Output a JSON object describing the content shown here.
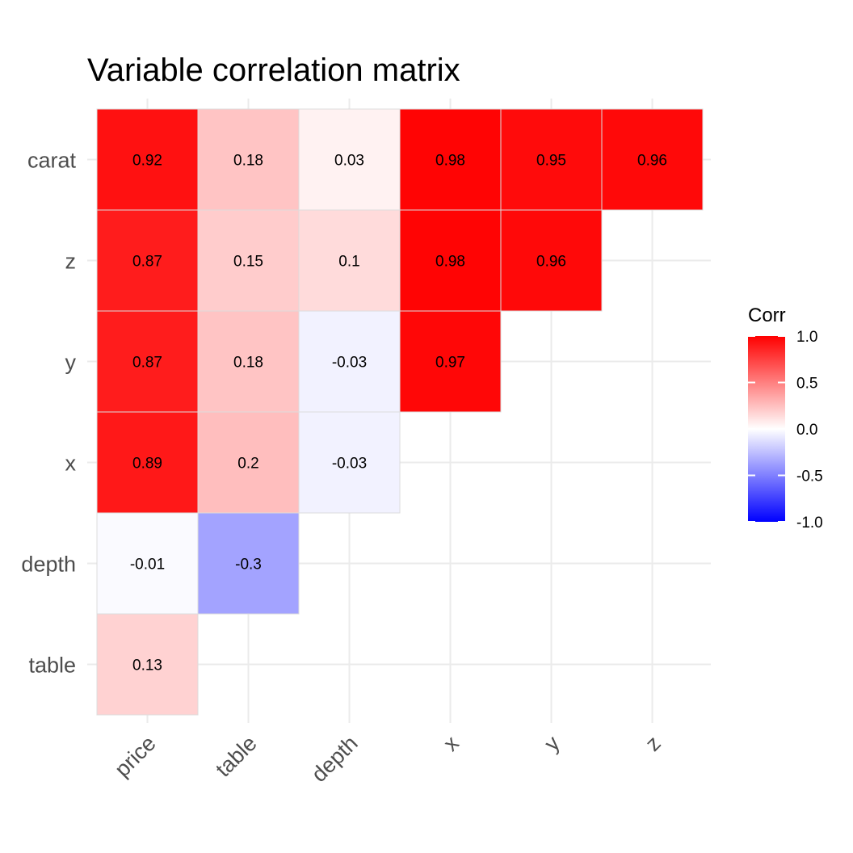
{
  "chart_data": {
    "type": "heatmap",
    "title": "Variable correlation matrix",
    "x_categories": [
      "price",
      "table",
      "depth",
      "x",
      "y",
      "z"
    ],
    "y_categories": [
      "carat",
      "z",
      "y",
      "x",
      "depth",
      "table"
    ],
    "cells": [
      {
        "x": "price",
        "y": "carat",
        "value": 0.92,
        "label": "0.92"
      },
      {
        "x": "table",
        "y": "carat",
        "value": 0.18,
        "label": "0.18"
      },
      {
        "x": "depth",
        "y": "carat",
        "value": 0.03,
        "label": "0.03"
      },
      {
        "x": "x",
        "y": "carat",
        "value": 0.98,
        "label": "0.98"
      },
      {
        "x": "y",
        "y": "carat",
        "value": 0.95,
        "label": "0.95"
      },
      {
        "x": "z",
        "y": "carat",
        "value": 0.96,
        "label": "0.96"
      },
      {
        "x": "price",
        "y": "z",
        "value": 0.87,
        "label": "0.87"
      },
      {
        "x": "table",
        "y": "z",
        "value": 0.15,
        "label": "0.15"
      },
      {
        "x": "depth",
        "y": "z",
        "value": 0.1,
        "label": "0.1"
      },
      {
        "x": "x",
        "y": "z",
        "value": 0.98,
        "label": "0.98"
      },
      {
        "x": "y",
        "y": "z",
        "value": 0.96,
        "label": "0.96"
      },
      {
        "x": "price",
        "y": "y",
        "value": 0.87,
        "label": "0.87"
      },
      {
        "x": "table",
        "y": "y",
        "value": 0.18,
        "label": "0.18"
      },
      {
        "x": "depth",
        "y": "y",
        "value": -0.03,
        "label": "-0.03"
      },
      {
        "x": "x",
        "y": "y",
        "value": 0.97,
        "label": "0.97"
      },
      {
        "x": "price",
        "y": "x",
        "value": 0.89,
        "label": "0.89"
      },
      {
        "x": "table",
        "y": "x",
        "value": 0.2,
        "label": "0.2"
      },
      {
        "x": "depth",
        "y": "x",
        "value": -0.03,
        "label": "-0.03"
      },
      {
        "x": "price",
        "y": "depth",
        "value": -0.01,
        "label": "-0.01"
      },
      {
        "x": "table",
        "y": "depth",
        "value": -0.3,
        "label": "-0.3"
      },
      {
        "x": "price",
        "y": "table",
        "value": 0.13,
        "label": "0.13"
      }
    ],
    "color_scale": {
      "low": "#0000ff",
      "mid": "#ffffff",
      "high": "#ff0000",
      "limits": [
        -1,
        1
      ]
    },
    "legend": {
      "title": "Corr",
      "breaks": [
        1.0,
        0.5,
        0.0,
        -0.5,
        -1.0
      ],
      "break_labels": [
        "1.0",
        "0.5",
        "0.0",
        "-0.5",
        "-1.0"
      ],
      "position": "right"
    },
    "grid": true,
    "tile_border_color": "#dcdcdc",
    "grid_color": "#ebebeb"
  }
}
